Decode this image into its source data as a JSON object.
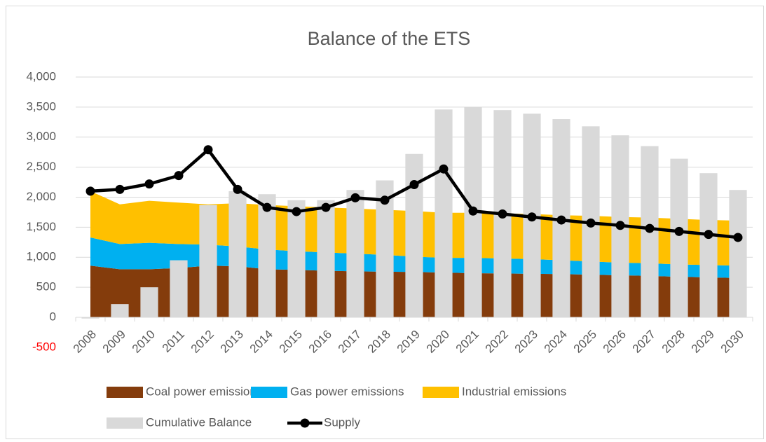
{
  "chart_data": {
    "type": "combo",
    "title": "Balance of the ETS",
    "categories": [
      "2008",
      "2009",
      "2010",
      "2011",
      "2012",
      "2013",
      "2014",
      "2015",
      "2016",
      "2017",
      "2018",
      "2019",
      "2020",
      "2021",
      "2022",
      "2023",
      "2024",
      "2025",
      "2026",
      "2027",
      "2028",
      "2029",
      "2030"
    ],
    "series": [
      {
        "name": "Coal power emissions",
        "color": "#843c0c",
        "kind": "stacked-area",
        "values": [
          860,
          800,
          800,
          820,
          860,
          850,
          800,
          790,
          775,
          765,
          760,
          755,
          745,
          735,
          730,
          725,
          720,
          710,
          700,
          690,
          675,
          665,
          655
        ]
      },
      {
        "name": "Gas power emissions",
        "color": "#00b0f0",
        "kind": "stacked-area",
        "values": [
          470,
          420,
          440,
          400,
          350,
          330,
          330,
          310,
          305,
          295,
          280,
          255,
          245,
          255,
          250,
          245,
          230,
          220,
          210,
          210,
          205,
          205,
          205
        ]
      },
      {
        "name": "Industrial emissions",
        "color": "#ffc000",
        "kind": "stacked-area",
        "values": [
          770,
          660,
          700,
          690,
          670,
          720,
          740,
          750,
          750,
          750,
          750,
          760,
          750,
          750,
          750,
          750,
          750,
          760,
          760,
          760,
          760,
          750,
          750
        ]
      },
      {
        "name": "Cumulative Balance",
        "color": "#d9d9d9",
        "kind": "bar",
        "values": [
          -20,
          220,
          500,
          950,
          1870,
          2100,
          2050,
          1950,
          1950,
          2120,
          2280,
          2720,
          3460,
          3500,
          3450,
          3390,
          3300,
          3180,
          3030,
          2850,
          2640,
          2400,
          2120
        ]
      },
      {
        "name": "Supply",
        "color": "#000000",
        "kind": "line",
        "values": [
          2100,
          2130,
          2220,
          2360,
          2790,
          2130,
          1830,
          1760,
          1830,
          1990,
          1950,
          2210,
          2470,
          1770,
          1720,
          1670,
          1620,
          1570,
          1530,
          1480,
          1430,
          1380,
          1330
        ]
      }
    ],
    "ylim": [
      -500,
      4000
    ],
    "yticks": [
      -500,
      0,
      500,
      {
        "value": 1000,
        "label": "1,000"
      },
      {
        "value": 1500,
        "label": "1,500"
      },
      {
        "value": 2000,
        "label": "2,000"
      },
      {
        "value": 2500,
        "label": "2,500"
      },
      {
        "value": 3000,
        "label": "3,000"
      },
      {
        "value": 3500,
        "label": "3,500"
      },
      {
        "value": 4000,
        "label": "4,000"
      }
    ],
    "negative_tick_color": "#ff0000",
    "grid": true,
    "legend": "bottom"
  }
}
